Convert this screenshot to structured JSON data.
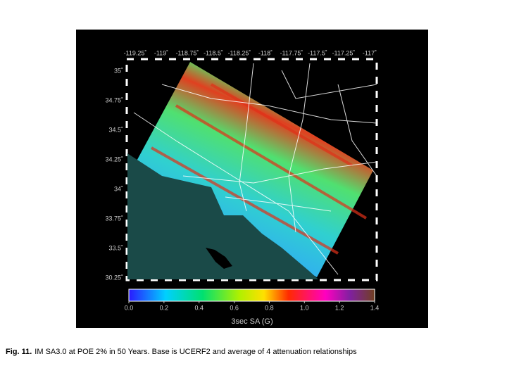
{
  "figure": {
    "lon_labels": [
      "-119.25˚",
      "-119˚",
      "-118.75˚",
      "-118.5˚",
      "-118.25˚",
      "-118˚",
      "-117.75˚",
      "-117.5˚",
      "-117.25˚",
      "-117˚"
    ],
    "lat_labels": [
      "35˚",
      "34.75˚",
      "34.5˚",
      "34.25˚",
      "34˚",
      "33.75˚",
      "33.5˚",
      "30.25˚"
    ],
    "colorbar": {
      "lim": [
        0,
        1.4
      ],
      "ticks": [
        {
          "value": 0,
          "label": "0.0"
        },
        {
          "value": 0.2,
          "label": "0.2"
        },
        {
          "value": 0.4,
          "label": "0.4"
        },
        {
          "value": 0.6,
          "label": "0.6"
        },
        {
          "value": 0.8,
          "label": "0.8"
        },
        {
          "value": 1,
          "label": "1.0"
        },
        {
          "value": 1.2,
          "label": "1.2"
        },
        {
          "value": 1.4,
          "label": "1.4"
        }
      ],
      "label": "3sec SA (G)"
    }
  },
  "caption": {
    "label": "Fig. 11.",
    "text": "IM SA3.0 at POE 2% in 50 Years. Base is UCERF2 and average of 4 attenuation relationships"
  }
}
